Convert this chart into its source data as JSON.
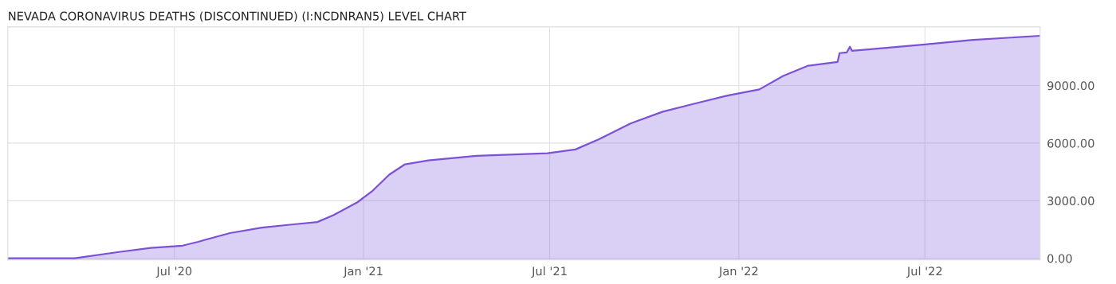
{
  "chart_data": {
    "type": "area",
    "title": "NEVADA CORONAVIRUS DEATHS (DISCONTINUED) (I:NCDNRAN5) LEVEL CHART",
    "x": [
      "2020-01-21",
      "2020-03-26",
      "2020-05-08",
      "2020-06-08",
      "2020-07-09",
      "2020-07-24",
      "2020-08-24",
      "2020-09-24",
      "2020-10-25",
      "2020-11-17",
      "2020-12-03",
      "2020-12-26",
      "2021-01-10",
      "2021-01-26",
      "2021-02-10",
      "2021-03-05",
      "2021-04-21",
      "2021-06-29",
      "2021-07-26",
      "2021-08-18",
      "2021-09-18",
      "2021-10-19",
      "2021-11-19",
      "2021-12-20",
      "2022-01-21",
      "2022-02-13",
      "2022-03-09",
      "2022-04-07",
      "2022-04-09",
      "2022-04-16",
      "2022-04-19",
      "2022-04-21",
      "2022-05-18",
      "2022-07-01",
      "2022-08-17",
      "2022-10-21"
    ],
    "series": [
      {
        "color": "#7b52d6",
        "values": [
          0,
          0,
          330,
          540,
          660,
          860,
          1315,
          1600,
          1770,
          1890,
          2260,
          2920,
          3530,
          4360,
          4890,
          5100,
          5340,
          5470,
          5670,
          6200,
          7030,
          7640,
          8060,
          8470,
          8800,
          9500,
          10030,
          10230,
          10690,
          10730,
          11020,
          10810,
          10930,
          11140,
          11380,
          11590
        ]
      }
    ],
    "xlim": [
      "2020-01-21",
      "2022-10-21"
    ],
    "xticks": [
      {
        "value": "2020-07-01",
        "label": "Jul '20"
      },
      {
        "value": "2021-01-01",
        "label": "Jan '21"
      },
      {
        "value": "2021-07-01",
        "label": "Jul '21"
      },
      {
        "value": "2022-01-01",
        "label": "Jan '22"
      },
      {
        "value": "2022-07-01",
        "label": "Jul '22"
      }
    ],
    "ylim": [
      -80,
      12050
    ],
    "yticks": [
      {
        "value": 0,
        "label": "0.00"
      },
      {
        "value": 3000,
        "label": "3000.00"
      },
      {
        "value": 6000,
        "label": "6000.00"
      },
      {
        "value": 9000,
        "label": "9000.00"
      }
    ],
    "grid": true,
    "legend": false
  }
}
